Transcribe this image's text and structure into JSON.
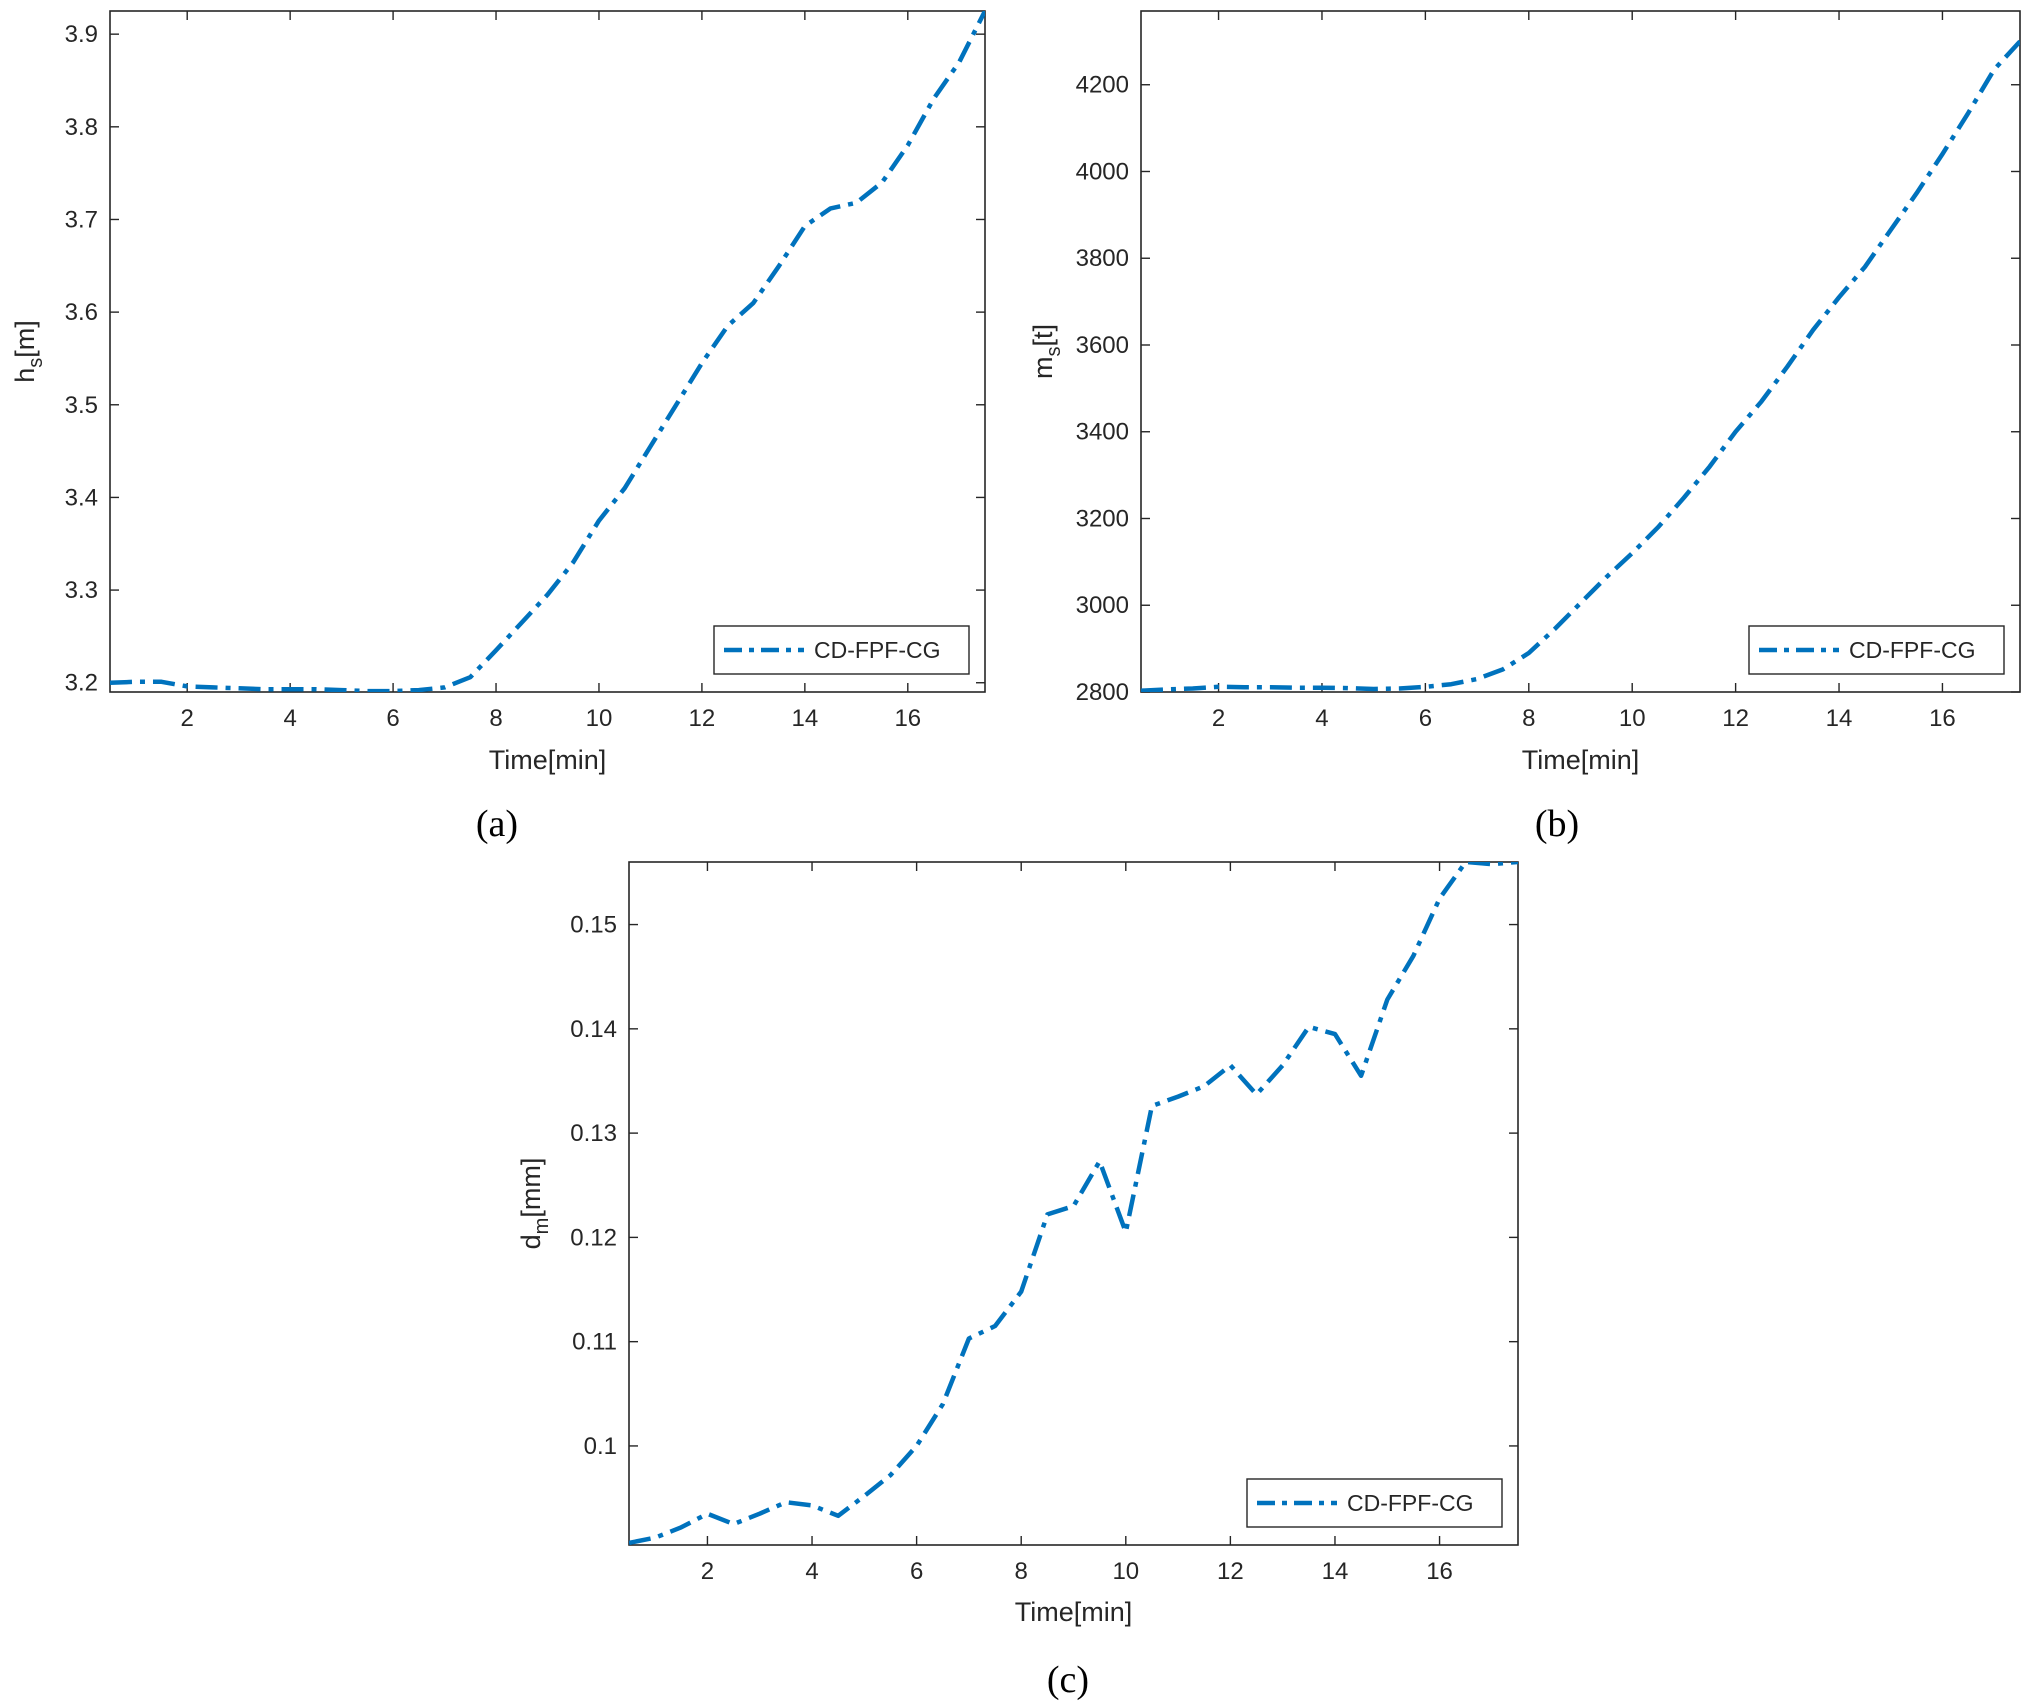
{
  "figure": {
    "captions": [
      "(a)",
      "(b)",
      "(c)"
    ]
  },
  "chart_data": [
    {
      "type": "line",
      "panel": "(a)",
      "title": "",
      "xlabel": "Time[min]",
      "ylabel": {
        "base": "h",
        "sub": "s",
        "unit": "[m]"
      },
      "xlim": [
        0.5,
        17.5
      ],
      "ylim": [
        3.19,
        3.925
      ],
      "xticks": [
        2,
        4,
        6,
        8,
        10,
        12,
        14,
        16
      ],
      "yticks": [
        3.2,
        3.3,
        3.4,
        3.5,
        3.6,
        3.7,
        3.8,
        3.9
      ],
      "ytick_labels": [
        "3.2",
        "3.3",
        "3.4",
        "3.5",
        "3.6",
        "3.7",
        "3.8",
        "3.9"
      ],
      "grid": false,
      "legend": {
        "position": "bottom-right",
        "entries": [
          "CD-FPF-CG"
        ]
      },
      "series": [
        {
          "name": "CD-FPF-CG",
          "color": "#0072BD",
          "line_style": "dash-dot",
          "x": [
            0.5,
            1.0,
            1.5,
            2.0,
            2.5,
            3.0,
            3.5,
            4.0,
            4.5,
            5.0,
            5.5,
            6.0,
            6.5,
            7.0,
            7.5,
            8.0,
            8.5,
            9.0,
            9.5,
            10.0,
            10.5,
            11.0,
            11.5,
            12.0,
            12.5,
            13.0,
            13.5,
            14.0,
            14.5,
            15.0,
            15.5,
            16.0,
            16.5,
            17.0,
            17.5
          ],
          "y": [
            3.2,
            3.201,
            3.201,
            3.196,
            3.195,
            3.194,
            3.193,
            3.193,
            3.193,
            3.192,
            3.191,
            3.191,
            3.192,
            3.195,
            3.206,
            3.235,
            3.265,
            3.295,
            3.33,
            3.375,
            3.41,
            3.455,
            3.5,
            3.545,
            3.585,
            3.61,
            3.65,
            3.693,
            3.712,
            3.718,
            3.74,
            3.78,
            3.83,
            3.87,
            3.925
          ]
        }
      ]
    },
    {
      "type": "line",
      "panel": "(b)",
      "title": "",
      "xlabel": "Time[min]",
      "ylabel": {
        "base": "m",
        "sub": "s",
        "unit": "[t]"
      },
      "xlim": [
        0.5,
        17.5
      ],
      "ylim": [
        2800,
        4370
      ],
      "xticks": [
        2,
        4,
        6,
        8,
        10,
        12,
        14,
        16
      ],
      "yticks": [
        2800,
        3000,
        3200,
        3400,
        3600,
        3800,
        4000,
        4200
      ],
      "ytick_labels": [
        "2800",
        "3000",
        "3200",
        "3400",
        "3600",
        "3800",
        "4000",
        "4200"
      ],
      "grid": false,
      "legend": {
        "position": "bottom-right",
        "entries": [
          "CD-FPF-CG"
        ]
      },
      "series": [
        {
          "name": "CD-FPF-CG",
          "color": "#0072BD",
          "line_style": "dash-dot",
          "x": [
            0.5,
            1.0,
            1.5,
            2.0,
            2.5,
            3.0,
            3.5,
            4.0,
            4.5,
            5.0,
            5.5,
            6.0,
            6.5,
            7.0,
            7.5,
            8.0,
            8.5,
            9.0,
            9.5,
            10.0,
            10.5,
            11.0,
            11.5,
            12.0,
            12.5,
            13.0,
            13.5,
            14.0,
            14.5,
            15.0,
            15.5,
            16.0,
            16.5,
            17.0,
            17.5
          ],
          "y": [
            2803,
            2806,
            2808,
            2812,
            2811,
            2811,
            2810,
            2810,
            2809,
            2807,
            2808,
            2812,
            2818,
            2830,
            2852,
            2890,
            2945,
            3005,
            3065,
            3120,
            3180,
            3248,
            3320,
            3400,
            3470,
            3550,
            3635,
            3710,
            3780,
            3865,
            3950,
            4040,
            4135,
            4235,
            4300
          ]
        }
      ]
    },
    {
      "type": "line",
      "panel": "(c)",
      "title": "",
      "xlabel": "Time[min]",
      "ylabel": {
        "base": "d",
        "sub": "m",
        "unit": "[mm]"
      },
      "xlim": [
        0.5,
        17.5
      ],
      "ylim": [
        0.0905,
        0.156
      ],
      "xticks": [
        2,
        4,
        6,
        8,
        10,
        12,
        14,
        16
      ],
      "yticks": [
        0.1,
        0.11,
        0.12,
        0.13,
        0.14,
        0.15
      ],
      "ytick_labels": [
        "0.1",
        "0.11",
        "0.12",
        "0.13",
        "0.14",
        "0.15"
      ],
      "grid": false,
      "legend": {
        "position": "bottom-right",
        "entries": [
          "CD-FPF-CG"
        ]
      },
      "series": [
        {
          "name": "CD-FPF-CG",
          "color": "#0072BD",
          "line_style": "dash-dot",
          "x": [
            0.5,
            1.0,
            1.5,
            2.0,
            2.5,
            3.0,
            3.5,
            4.0,
            4.5,
            5.0,
            5.5,
            6.0,
            6.5,
            7.0,
            7.5,
            8.0,
            8.5,
            9.0,
            9.5,
            10.0,
            10.5,
            11.0,
            11.5,
            12.0,
            12.5,
            13.0,
            13.5,
            14.0,
            14.5,
            15.0,
            15.5,
            16.0,
            16.5,
            17.0,
            17.5
          ],
          "y": [
            0.0907,
            0.0912,
            0.0922,
            0.0935,
            0.0925,
            0.0935,
            0.0946,
            0.0943,
            0.0933,
            0.0952,
            0.0972,
            0.1,
            0.104,
            0.1103,
            0.1115,
            0.1148,
            0.1222,
            0.123,
            0.1273,
            0.1205,
            0.1326,
            0.1335,
            0.1345,
            0.1365,
            0.1337,
            0.1365,
            0.1402,
            0.1395,
            0.1355,
            0.1428,
            0.147,
            0.1525,
            0.156,
            0.1558,
            0.156
          ]
        }
      ]
    }
  ]
}
